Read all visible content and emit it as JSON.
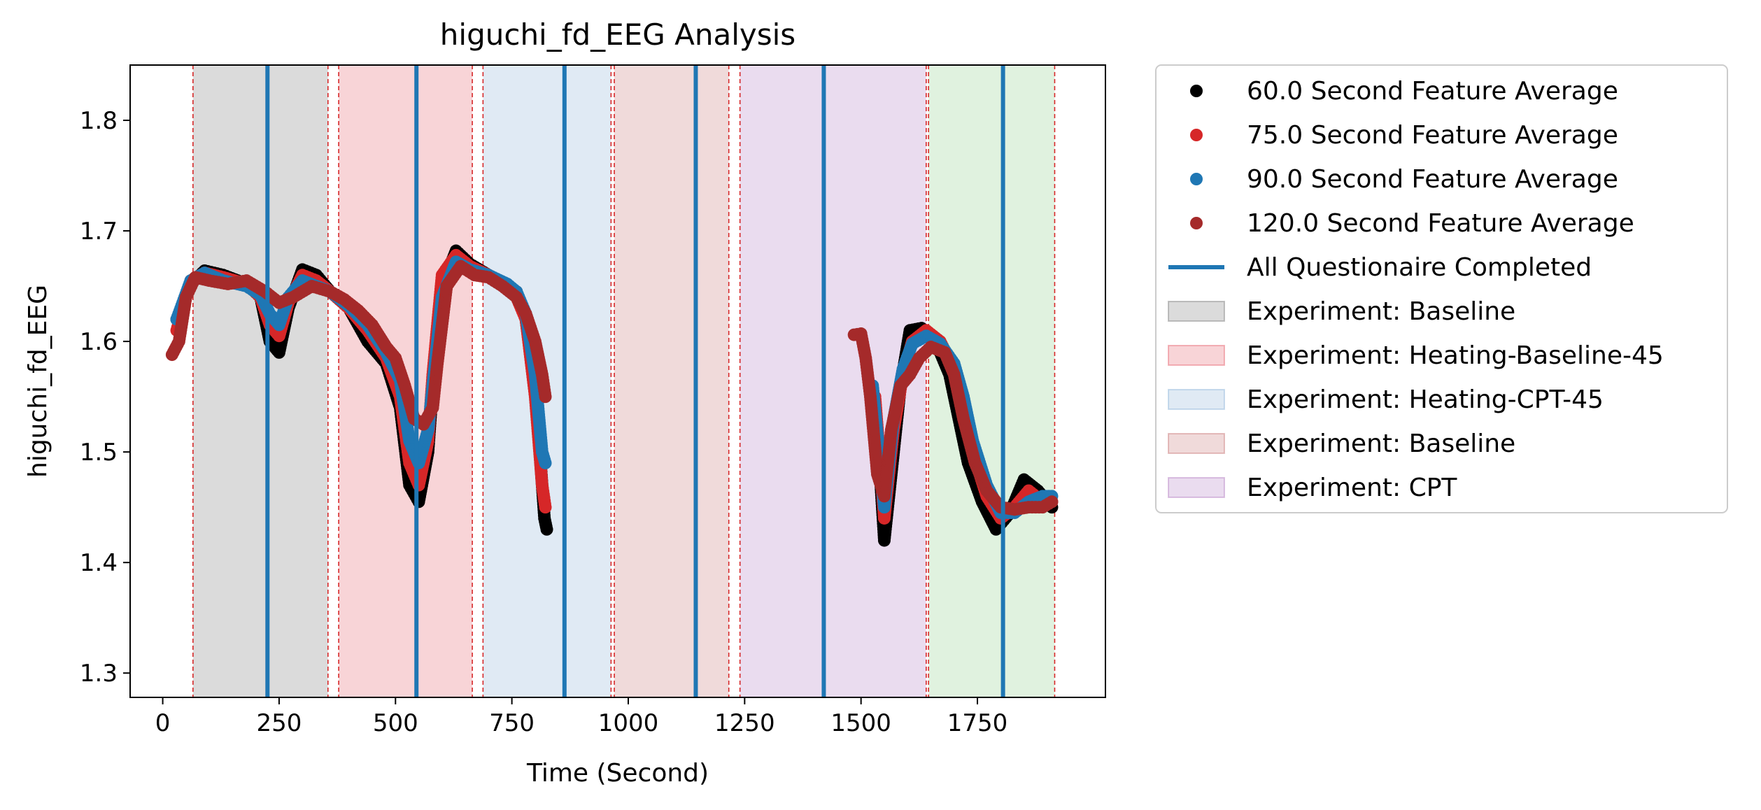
{
  "chart_data": {
    "type": "scatter",
    "title": "higuchi_fd_EEG Analysis",
    "xlabel": "Time (Second)",
    "ylabel": "higuchi_fd_EEG",
    "xlim": [
      -70,
      2025
    ],
    "ylim": [
      1.278,
      1.85
    ],
    "xticks": [
      0,
      250,
      500,
      750,
      1000,
      1250,
      1500,
      1750
    ],
    "xtick_labels": [
      "0",
      "250",
      "500",
      "750",
      "1000",
      "1250",
      "1500",
      "1750"
    ],
    "yticks": [
      1.3,
      1.4,
      1.5,
      1.6,
      1.7,
      1.8
    ],
    "ytick_labels": [
      "1.3",
      "1.4",
      "1.5",
      "1.6",
      "1.7",
      "1.8"
    ],
    "grid": false,
    "legend_position": "outside-right",
    "phases": [
      {
        "name": "Experiment: Baseline",
        "start": 65,
        "end": 355,
        "color": "#7f7f7f"
      },
      {
        "name": "Experiment: Heating-Baseline-45",
        "start": 378,
        "end": 665,
        "color": "#e6636f"
      },
      {
        "name": "Experiment: Heating-CPT-45",
        "start": 688,
        "end": 963,
        "color": "#8fb5d9"
      },
      {
        "name": "Experiment: Baseline",
        "start": 970,
        "end": 1216,
        "color": "#c97b7b"
      },
      {
        "name": "Experiment: CPT",
        "start": 1240,
        "end": 1640,
        "color": "#b581c4"
      },
      {
        "name": "",
        "start": 1645,
        "end": 1916,
        "color": "#8fd18c"
      }
    ],
    "phase_boundaries": [
      65,
      355,
      378,
      665,
      688,
      963,
      970,
      1216,
      1240,
      1640,
      1645,
      1916
    ],
    "questionnaire_lines": [
      225,
      545,
      863,
      1145,
      1420,
      1805
    ],
    "series": [
      {
        "name": "60.0 Second Feature Average",
        "color": "#000000",
        "points": [
          [
            30,
            1.62
          ],
          [
            60,
            1.652
          ],
          [
            90,
            1.664
          ],
          [
            130,
            1.66
          ],
          [
            180,
            1.652
          ],
          [
            210,
            1.64
          ],
          [
            230,
            1.6
          ],
          [
            250,
            1.59
          ],
          [
            270,
            1.63
          ],
          [
            300,
            1.665
          ],
          [
            330,
            1.66
          ],
          [
            360,
            1.645
          ],
          [
            400,
            1.63
          ],
          [
            440,
            1.6
          ],
          [
            480,
            1.58
          ],
          [
            510,
            1.54
          ],
          [
            530,
            1.47
          ],
          [
            550,
            1.455
          ],
          [
            570,
            1.5
          ],
          [
            580,
            1.56
          ],
          [
            600,
            1.65
          ],
          [
            630,
            1.682
          ],
          [
            660,
            1.67
          ],
          [
            700,
            1.66
          ],
          [
            740,
            1.65
          ],
          [
            760,
            1.645
          ],
          [
            780,
            1.62
          ],
          [
            800,
            1.56
          ],
          [
            810,
            1.5
          ],
          [
            820,
            1.44
          ],
          [
            825,
            1.43
          ],
          [
            1535,
            1.52
          ],
          [
            1550,
            1.42
          ],
          [
            1570,
            1.5
          ],
          [
            1585,
            1.56
          ],
          [
            1605,
            1.61
          ],
          [
            1630,
            1.612
          ],
          [
            1660,
            1.6
          ],
          [
            1690,
            1.57
          ],
          [
            1710,
            1.53
          ],
          [
            1730,
            1.49
          ],
          [
            1760,
            1.455
          ],
          [
            1790,
            1.43
          ],
          [
            1820,
            1.445
          ],
          [
            1850,
            1.475
          ],
          [
            1880,
            1.465
          ],
          [
            1910,
            1.45
          ]
        ]
      },
      {
        "name": "75.0 Second Feature Average",
        "color": "#d62728",
        "points": [
          [
            30,
            1.61
          ],
          [
            60,
            1.655
          ],
          [
            90,
            1.662
          ],
          [
            130,
            1.658
          ],
          [
            180,
            1.652
          ],
          [
            210,
            1.64
          ],
          [
            230,
            1.615
          ],
          [
            250,
            1.605
          ],
          [
            270,
            1.635
          ],
          [
            300,
            1.66
          ],
          [
            330,
            1.655
          ],
          [
            360,
            1.645
          ],
          [
            400,
            1.63
          ],
          [
            440,
            1.61
          ],
          [
            480,
            1.585
          ],
          [
            510,
            1.55
          ],
          [
            530,
            1.49
          ],
          [
            550,
            1.47
          ],
          [
            570,
            1.51
          ],
          [
            580,
            1.57
          ],
          [
            600,
            1.66
          ],
          [
            630,
            1.678
          ],
          [
            660,
            1.668
          ],
          [
            700,
            1.66
          ],
          [
            740,
            1.65
          ],
          [
            760,
            1.64
          ],
          [
            780,
            1.62
          ],
          [
            800,
            1.55
          ],
          [
            815,
            1.47
          ],
          [
            822,
            1.45
          ],
          [
            1530,
            1.55
          ],
          [
            1550,
            1.44
          ],
          [
            1570,
            1.52
          ],
          [
            1590,
            1.57
          ],
          [
            1610,
            1.6
          ],
          [
            1640,
            1.61
          ],
          [
            1670,
            1.6
          ],
          [
            1700,
            1.575
          ],
          [
            1720,
            1.54
          ],
          [
            1740,
            1.5
          ],
          [
            1770,
            1.46
          ],
          [
            1800,
            1.44
          ],
          [
            1830,
            1.45
          ],
          [
            1860,
            1.465
          ],
          [
            1890,
            1.455
          ],
          [
            1910,
            1.455
          ]
        ]
      },
      {
        "name": "90.0 Second Feature Average",
        "color": "#1f77b4",
        "points": [
          [
            30,
            1.62
          ],
          [
            60,
            1.655
          ],
          [
            90,
            1.662
          ],
          [
            130,
            1.655
          ],
          [
            180,
            1.65
          ],
          [
            210,
            1.642
          ],
          [
            230,
            1.625
          ],
          [
            250,
            1.615
          ],
          [
            270,
            1.64
          ],
          [
            300,
            1.655
          ],
          [
            330,
            1.65
          ],
          [
            360,
            1.645
          ],
          [
            400,
            1.632
          ],
          [
            440,
            1.615
          ],
          [
            480,
            1.59
          ],
          [
            510,
            1.565
          ],
          [
            530,
            1.51
          ],
          [
            550,
            1.49
          ],
          [
            570,
            1.52
          ],
          [
            585,
            1.58
          ],
          [
            600,
            1.64
          ],
          [
            630,
            1.672
          ],
          [
            660,
            1.665
          ],
          [
            700,
            1.66
          ],
          [
            740,
            1.652
          ],
          [
            760,
            1.645
          ],
          [
            780,
            1.625
          ],
          [
            800,
            1.57
          ],
          [
            815,
            1.5
          ],
          [
            822,
            1.49
          ],
          [
            1525,
            1.56
          ],
          [
            1550,
            1.45
          ],
          [
            1570,
            1.53
          ],
          [
            1590,
            1.575
          ],
          [
            1610,
            1.598
          ],
          [
            1640,
            1.605
          ],
          [
            1670,
            1.598
          ],
          [
            1700,
            1.58
          ],
          [
            1720,
            1.55
          ],
          [
            1740,
            1.51
          ],
          [
            1770,
            1.47
          ],
          [
            1800,
            1.445
          ],
          [
            1830,
            1.445
          ],
          [
            1860,
            1.455
          ],
          [
            1890,
            1.46
          ],
          [
            1910,
            1.46
          ]
        ]
      },
      {
        "name": "120.0 Second Feature Average",
        "color": "#a52a2a",
        "points": [
          [
            20,
            1.588
          ],
          [
            35,
            1.6
          ],
          [
            50,
            1.64
          ],
          [
            70,
            1.658
          ],
          [
            100,
            1.655
          ],
          [
            140,
            1.652
          ],
          [
            180,
            1.655
          ],
          [
            220,
            1.645
          ],
          [
            250,
            1.635
          ],
          [
            280,
            1.64
          ],
          [
            320,
            1.65
          ],
          [
            360,
            1.645
          ],
          [
            390,
            1.638
          ],
          [
            420,
            1.628
          ],
          [
            450,
            1.615
          ],
          [
            480,
            1.595
          ],
          [
            500,
            1.585
          ],
          [
            520,
            1.56
          ],
          [
            540,
            1.53
          ],
          [
            560,
            1.525
          ],
          [
            580,
            1.54
          ],
          [
            590,
            1.58
          ],
          [
            610,
            1.65
          ],
          [
            640,
            1.668
          ],
          [
            670,
            1.66
          ],
          [
            700,
            1.658
          ],
          [
            730,
            1.65
          ],
          [
            760,
            1.64
          ],
          [
            780,
            1.625
          ],
          [
            800,
            1.6
          ],
          [
            815,
            1.57
          ],
          [
            822,
            1.55
          ],
          [
            1485,
            1.606
          ],
          [
            1500,
            1.607
          ],
          [
            1510,
            1.585
          ],
          [
            1520,
            1.55
          ],
          [
            1535,
            1.48
          ],
          [
            1550,
            1.46
          ],
          [
            1565,
            1.52
          ],
          [
            1585,
            1.56
          ],
          [
            1605,
            1.57
          ],
          [
            1625,
            1.585
          ],
          [
            1650,
            1.595
          ],
          [
            1680,
            1.59
          ],
          [
            1700,
            1.57
          ],
          [
            1720,
            1.53
          ],
          [
            1745,
            1.49
          ],
          [
            1770,
            1.465
          ],
          [
            1800,
            1.45
          ],
          [
            1830,
            1.448
          ],
          [
            1860,
            1.45
          ],
          [
            1890,
            1.45
          ],
          [
            1910,
            1.455
          ]
        ]
      }
    ],
    "legend": [
      {
        "kind": "marker",
        "label": "60.0 Second Feature Average",
        "color": "#000000"
      },
      {
        "kind": "marker",
        "label": "75.0 Second Feature Average",
        "color": "#d62728"
      },
      {
        "kind": "marker",
        "label": "90.0 Second Feature Average",
        "color": "#1f77b4"
      },
      {
        "kind": "marker",
        "label": "120.0 Second Feature Average",
        "color": "#a52a2a"
      },
      {
        "kind": "line",
        "label": "All Questionaire Completed",
        "color": "#1f77b4"
      },
      {
        "kind": "patch",
        "label": "Experiment: Baseline",
        "color": "#7f7f7f"
      },
      {
        "kind": "patch",
        "label": "Experiment: Heating-Baseline-45",
        "color": "#e6636f"
      },
      {
        "kind": "patch",
        "label": "Experiment: Heating-CPT-45",
        "color": "#8fb5d9"
      },
      {
        "kind": "patch",
        "label": "Experiment: Baseline",
        "color": "#c97b7b"
      },
      {
        "kind": "patch",
        "label": "Experiment: CPT",
        "color": "#b581c4"
      }
    ]
  }
}
